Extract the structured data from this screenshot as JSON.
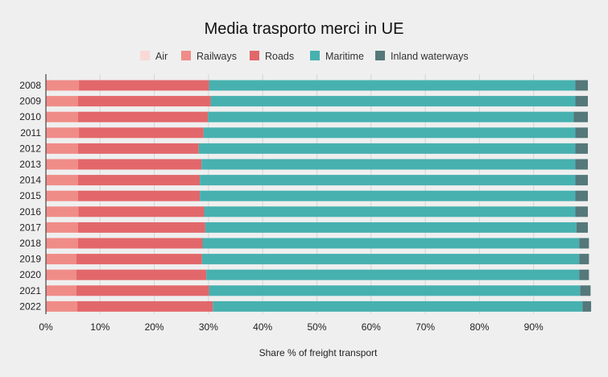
{
  "chart_data": {
    "type": "bar",
    "orientation": "horizontal",
    "stacked": true,
    "title": "Media trasporto merci in UE",
    "xlabel": "Share % of freight transport",
    "ylabel": "",
    "xlim": [
      0,
      100
    ],
    "x_ticks": [
      "0%",
      "10%",
      "20%",
      "30%",
      "40%",
      "50%",
      "60%",
      "70%",
      "80%",
      "90%"
    ],
    "x_tick_values": [
      0,
      10,
      20,
      30,
      40,
      50,
      60,
      70,
      80,
      90
    ],
    "grid": true,
    "legend_position": "top-center",
    "categories": [
      "2008",
      "2009",
      "2010",
      "2011",
      "2012",
      "2013",
      "2014",
      "2015",
      "2016",
      "2017",
      "2018",
      "2019",
      "2020",
      "2021",
      "2022"
    ],
    "series": [
      {
        "name": "Air",
        "color": "#f9d9d7",
        "values": [
          0.1,
          0.1,
          0.1,
          0.1,
          0.1,
          0.1,
          0.1,
          0.1,
          0.1,
          0.1,
          0.1,
          0.1,
          0.1,
          0.1,
          0.1
        ]
      },
      {
        "name": "Railways",
        "color": "#f08c88",
        "values": [
          6.0,
          5.8,
          5.8,
          6.0,
          5.8,
          5.8,
          5.8,
          5.8,
          5.9,
          5.8,
          5.8,
          5.5,
          5.5,
          5.5,
          5.7
        ]
      },
      {
        "name": "Roads",
        "color": "#e2676a",
        "values": [
          24.0,
          24.5,
          24.0,
          23.0,
          22.3,
          22.8,
          22.5,
          22.5,
          23.2,
          23.5,
          23.0,
          23.2,
          24.0,
          24.5,
          25.0
        ]
      },
      {
        "name": "Maritime",
        "color": "#47b1b0",
        "values": [
          67.6,
          67.3,
          67.5,
          68.6,
          69.5,
          69.0,
          69.3,
          69.3,
          68.5,
          68.5,
          69.5,
          69.6,
          68.8,
          68.5,
          68.2
        ]
      },
      {
        "name": "Inland waterways",
        "color": "#55787a",
        "values": [
          2.3,
          2.3,
          2.6,
          2.3,
          2.3,
          2.3,
          2.3,
          2.3,
          2.3,
          2.1,
          1.8,
          1.8,
          1.8,
          1.9,
          1.6
        ]
      }
    ]
  }
}
